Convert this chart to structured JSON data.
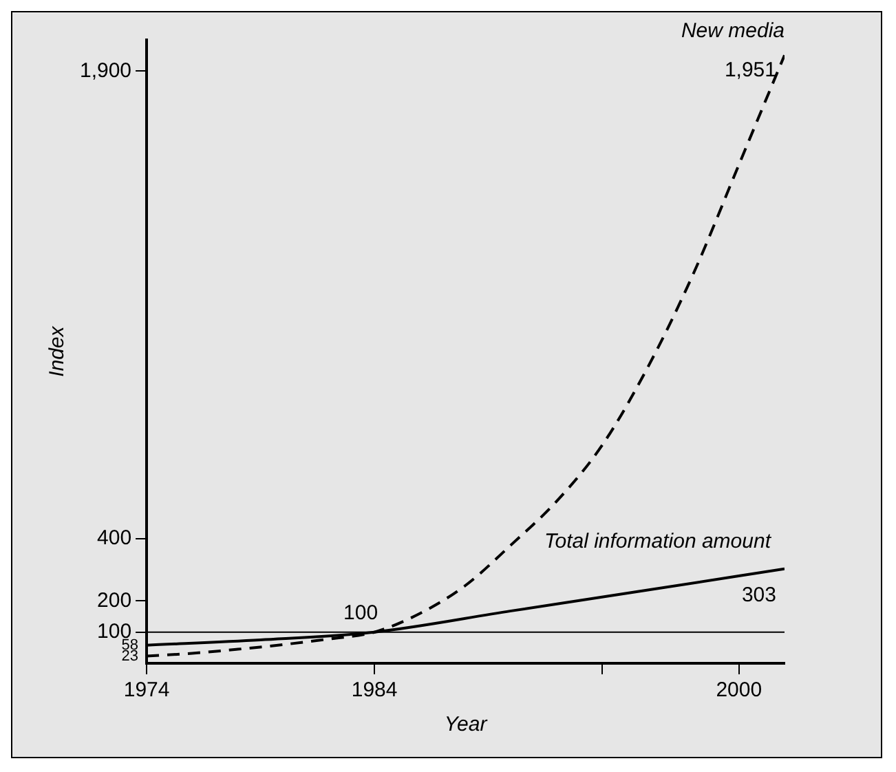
{
  "chart_data": {
    "type": "line",
    "xlabel": "Year",
    "ylabel": "Index",
    "xlim": [
      1974,
      2002
    ],
    "xticks": [
      1974,
      1984,
      {
        "value": 1994,
        "label": null
      },
      2000
    ],
    "ylim": [
      0,
      2000
    ],
    "yticks": [
      100,
      200,
      400,
      {
        "value": 1900,
        "label": "1,900"
      }
    ],
    "grid": false,
    "legend": false,
    "marker": "none",
    "ref_lines": [
      {
        "axis": "y",
        "value": 100,
        "color": "#000000",
        "line_style": "solid"
      }
    ],
    "series": [
      {
        "name": "New media",
        "color": "#000000",
        "line_style": "dashed",
        "x": [
          1974,
          1976,
          1978,
          1980,
          1982,
          1984,
          1986,
          1988,
          1990,
          1992,
          1994,
          1996,
          1998,
          2000,
          2002
        ],
        "values": [
          23,
          32,
          45,
          60,
          78,
          100,
          160,
          250,
          380,
          520,
          700,
          950,
          1250,
          1600,
          1951
        ],
        "value_labels": [
          "23",
          null,
          null,
          null,
          null,
          null,
          null,
          null,
          null,
          null,
          null,
          null,
          null,
          null,
          "1,951"
        ]
      },
      {
        "name": "Total information amount",
        "color": "#000000",
        "line_style": "solid",
        "x": [
          1974,
          1979,
          1984,
          1990,
          1996,
          2002
        ],
        "values": [
          58,
          75,
          100,
          168,
          235,
          303
        ],
        "value_labels": [
          "58",
          null,
          "100",
          null,
          null,
          "303"
        ]
      }
    ]
  }
}
